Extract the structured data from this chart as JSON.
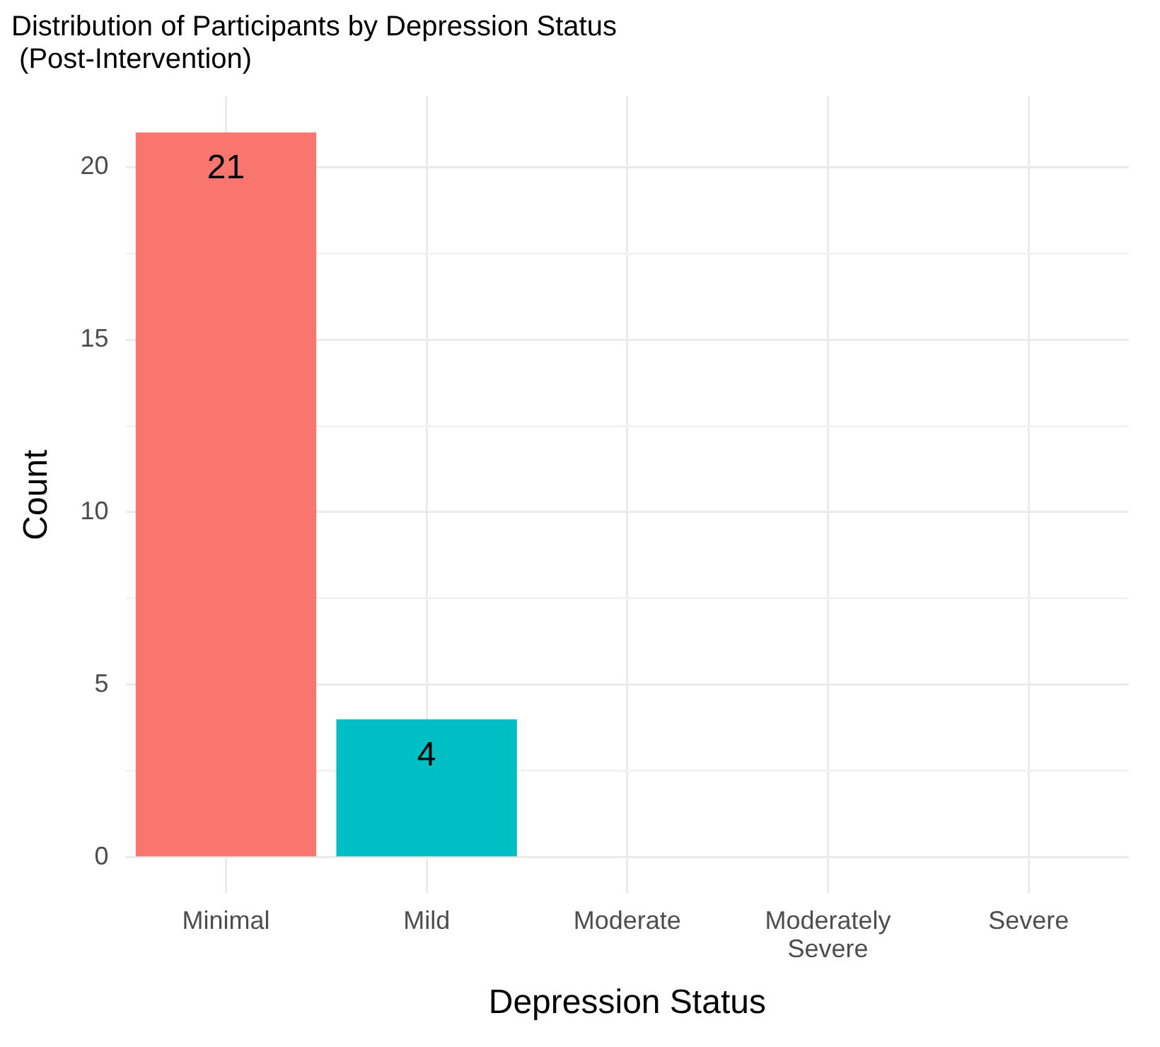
{
  "chart_data": {
    "type": "bar",
    "title": "Distribution of Participants by Depression Status\n (Post-Intervention)",
    "xlabel": "Depression Status",
    "ylabel": "Count",
    "categories": [
      "Minimal",
      "Mild",
      "Moderate",
      "Moderately\nSevere",
      "Severe"
    ],
    "values": [
      21,
      4,
      null,
      null,
      null
    ],
    "colors": [
      "#f8766d",
      "#00bfc4",
      null,
      null,
      null
    ],
    "value_labels": [
      "21",
      "4",
      null,
      null,
      null
    ],
    "ylim": [
      -1.05,
      22.05
    ],
    "yticks": [
      0,
      {
        "value": 2.5,
        "label": null
      },
      5,
      {
        "value": 7.5,
        "label": null
      },
      10,
      {
        "value": 12.5,
        "label": null
      },
      15,
      {
        "value": 17.5,
        "label": null
      },
      20
    ],
    "grid": true,
    "legend": false
  }
}
